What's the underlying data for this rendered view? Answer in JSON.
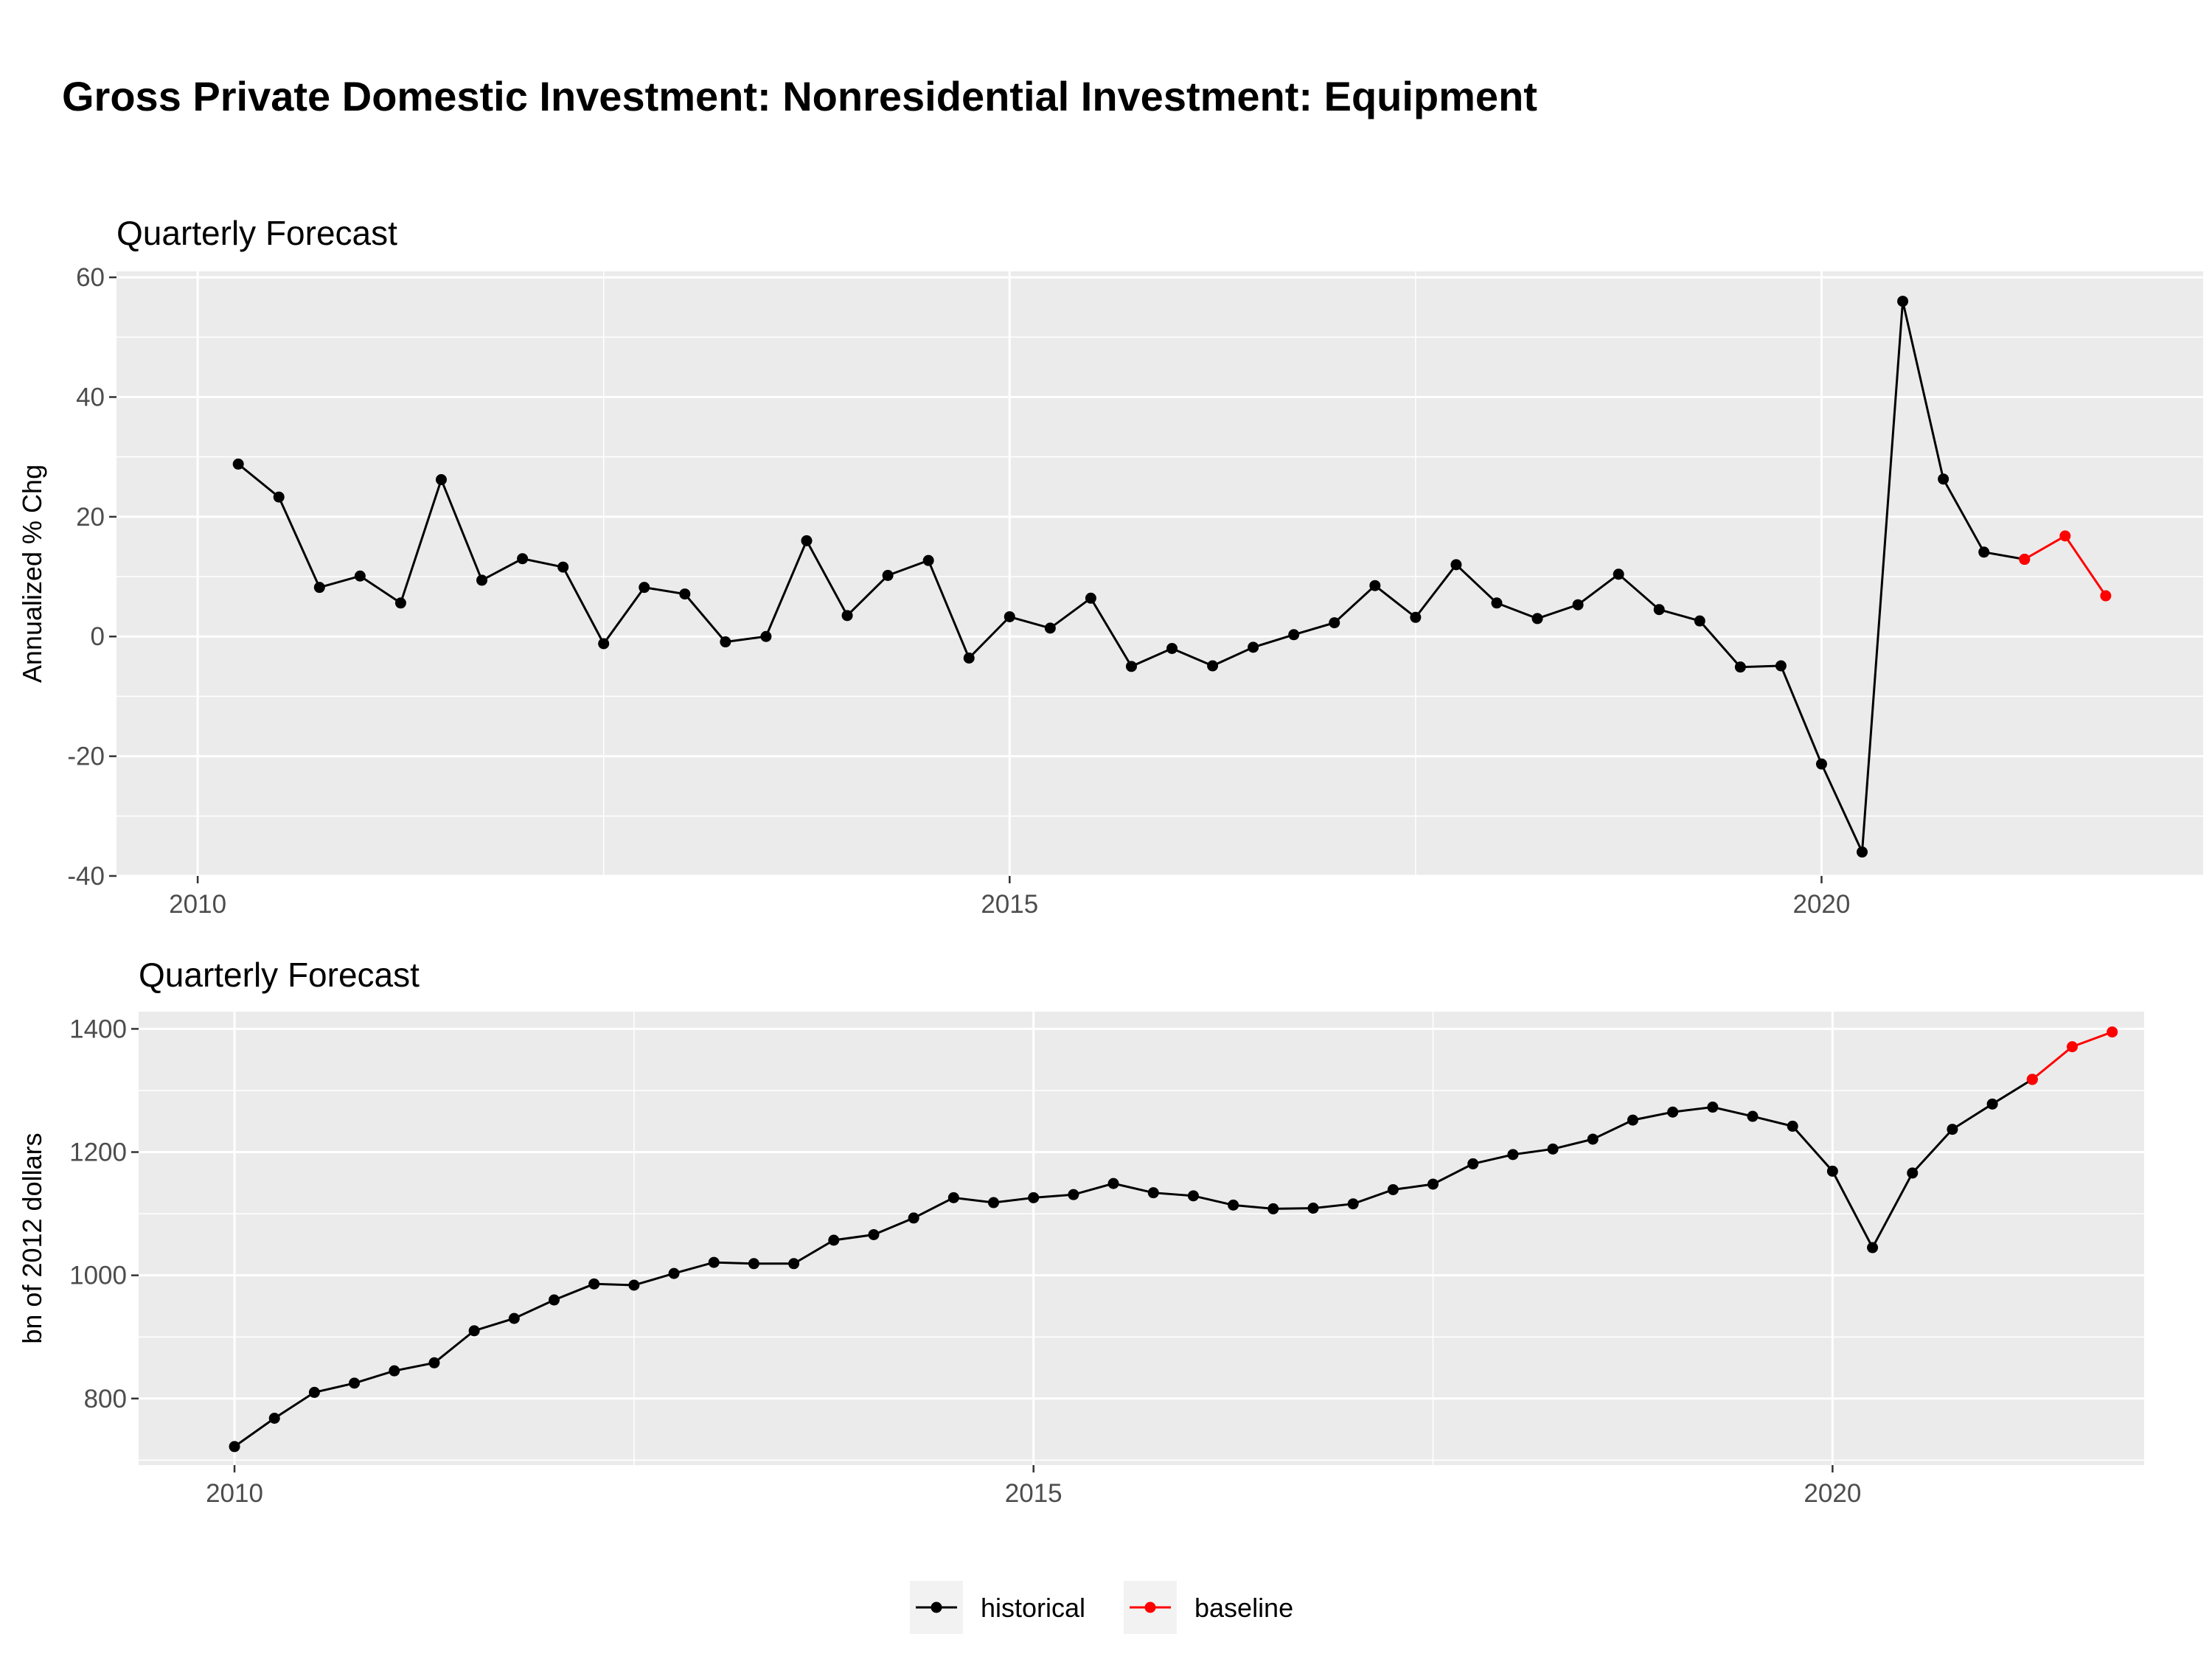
{
  "title": "Gross Private Domestic Investment: Nonresidential Investment: Equipment",
  "legend": {
    "position": "bottom",
    "entries": [
      {
        "label": "historical",
        "color": "#000000"
      },
      {
        "label": "baseline",
        "color": "#ff0000"
      }
    ]
  },
  "chart_data": [
    {
      "type": "line",
      "title": "Quarterly Forecast",
      "xlabel": "",
      "ylabel": "Annualized % Chg",
      "xlim": [
        2009.5,
        2022.35
      ],
      "ylim": [
        -40,
        61
      ],
      "x_ticks": [
        2010,
        2015,
        2020
      ],
      "x_tick_labels": [
        "2010",
        "2015",
        "2020"
      ],
      "y_ticks": [
        -40,
        -20,
        0,
        20,
        40,
        60
      ],
      "y_tick_labels": [
        "-40",
        "-20",
        "0",
        "20",
        "40",
        "60"
      ],
      "grid": true,
      "series": [
        {
          "name": "historical",
          "color": "#000000",
          "x": [
            2010.25,
            2010.5,
            2010.75,
            2011.0,
            2011.25,
            2011.5,
            2011.75,
            2012.0,
            2012.25,
            2012.5,
            2012.75,
            2013.0,
            2013.25,
            2013.5,
            2013.75,
            2014.0,
            2014.25,
            2014.5,
            2014.75,
            2015.0,
            2015.25,
            2015.5,
            2015.75,
            2016.0,
            2016.25,
            2016.5,
            2016.75,
            2017.0,
            2017.25,
            2017.5,
            2017.75,
            2018.0,
            2018.25,
            2018.5,
            2018.75,
            2019.0,
            2019.25,
            2019.5,
            2019.75,
            2020.0,
            2020.25,
            2020.5,
            2020.75,
            2021.0,
            2021.25
          ],
          "y": [
            28.8,
            23.3,
            8.2,
            10.1,
            5.6,
            26.2,
            9.4,
            13.0,
            11.6,
            -1.2,
            8.2,
            7.1,
            -0.9,
            0.0,
            16.0,
            3.5,
            10.2,
            12.7,
            -3.6,
            3.3,
            1.4,
            6.4,
            -5.0,
            -2.0,
            -4.9,
            -1.8,
            0.3,
            2.3,
            8.5,
            3.2,
            12.0,
            5.6,
            3.0,
            5.3,
            10.4,
            4.5,
            2.6,
            -5.1,
            -4.9,
            -21.3,
            -36.0,
            56.0,
            26.3,
            14.1,
            12.9
          ]
        },
        {
          "name": "baseline",
          "color": "#ff0000",
          "x": [
            2021.25,
            2021.5,
            2021.75
          ],
          "y": [
            12.9,
            16.8,
            6.8
          ]
        }
      ]
    },
    {
      "type": "line",
      "title": "Quarterly Forecast",
      "xlabel": "",
      "ylabel": "bn of 2012 dollars",
      "xlim": [
        2009.4,
        2021.95
      ],
      "ylim": [
        692,
        1428
      ],
      "x_ticks": [
        2010,
        2015,
        2020
      ],
      "x_tick_labels": [
        "2010",
        "2015",
        "2020"
      ],
      "y_ticks": [
        800,
        1000,
        1200,
        1400
      ],
      "y_tick_labels": [
        "800",
        "1000",
        "1200",
        "1400"
      ],
      "grid": true,
      "series": [
        {
          "name": "historical",
          "color": "#000000",
          "x": [
            2010.0,
            2010.25,
            2010.5,
            2010.75,
            2011.0,
            2011.25,
            2011.5,
            2011.75,
            2012.0,
            2012.25,
            2012.5,
            2012.75,
            2013.0,
            2013.25,
            2013.5,
            2013.75,
            2014.0,
            2014.25,
            2014.5,
            2014.75,
            2015.0,
            2015.25,
            2015.5,
            2015.75,
            2016.0,
            2016.25,
            2016.5,
            2016.75,
            2017.0,
            2017.25,
            2017.5,
            2017.75,
            2018.0,
            2018.25,
            2018.5,
            2018.75,
            2019.0,
            2019.25,
            2019.5,
            2019.75,
            2020.0,
            2020.25,
            2020.5,
            2020.75,
            2021.0,
            2021.25
          ],
          "y": [
            722,
            768,
            810,
            825,
            845,
            858,
            910,
            930,
            960,
            986,
            984,
            1003,
            1021,
            1019,
            1019,
            1057,
            1066,
            1093,
            1126,
            1118,
            1126,
            1131,
            1149,
            1134,
            1129,
            1114,
            1108,
            1109,
            1116,
            1139,
            1148,
            1181,
            1196,
            1205,
            1221,
            1252,
            1265,
            1273,
            1258,
            1242,
            1169,
            1045,
            1166,
            1237,
            1278,
            1318
          ]
        },
        {
          "name": "baseline",
          "color": "#ff0000",
          "x": [
            2021.25,
            2021.5,
            2021.75
          ],
          "y": [
            1318,
            1371,
            1395
          ]
        }
      ]
    }
  ]
}
